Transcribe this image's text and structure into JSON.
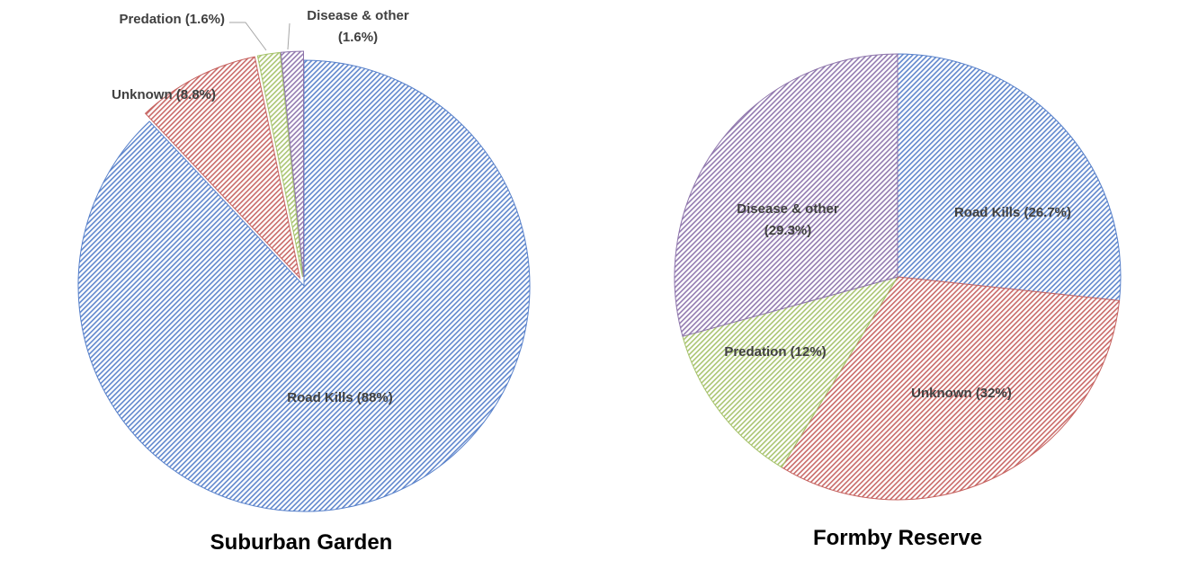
{
  "chart_data": [
    {
      "type": "pie",
      "title": "Suburban Garden",
      "start_angle_deg": 0,
      "direction": "clockwise",
      "exploded": true,
      "slices": [
        {
          "label": "Road Kills (88%)",
          "category": "Road Kills",
          "value": 88.0,
          "color": "#4472C4"
        },
        {
          "label": "Unknown (8.8%)",
          "category": "Unknown",
          "value": 8.8,
          "color": "#C0504D"
        },
        {
          "label": "Predation (1.6%)",
          "category": "Predation",
          "value": 1.6,
          "color": "#9BBB59"
        },
        {
          "label": "Disease & other (1.6%)",
          "category": "Disease & other",
          "value": 1.6,
          "color": "#8064A2"
        }
      ]
    },
    {
      "type": "pie",
      "title": "Formby Reserve",
      "start_angle_deg": 0,
      "direction": "clockwise",
      "exploded": false,
      "slices": [
        {
          "label": "Road Kills (26.7%)",
          "category": "Road Kills",
          "value": 26.7,
          "color": "#4472C4"
        },
        {
          "label": "Unknown (32%)",
          "category": "Unknown",
          "value": 32.0,
          "color": "#C0504D"
        },
        {
          "label": "Predation (12%)",
          "category": "Predation",
          "value": 12.0,
          "color": "#9BBB59"
        },
        {
          "label": "Disease & other (29.3%)",
          "category": "Disease & other",
          "value": 29.3,
          "color": "#8064A2"
        }
      ]
    }
  ]
}
